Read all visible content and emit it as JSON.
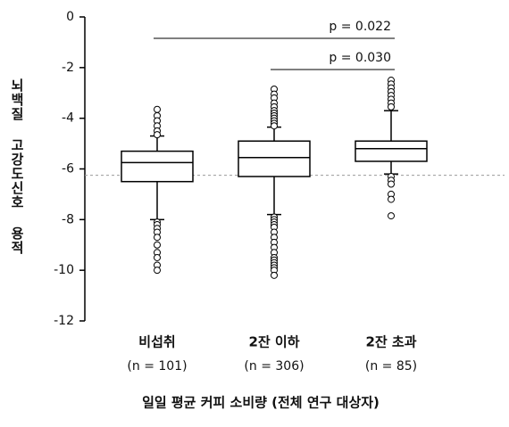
{
  "chart_data": {
    "type": "box",
    "y_label": "뇌백질 고강도신호 용적",
    "x_label": "일일 평균 커피 소비량 (전체 연구 대상자)",
    "categories": [
      "비섭취",
      "2잔 이하",
      "2잔 초과"
    ],
    "n_labels": [
      "(n = 101)",
      "(n = 306)",
      "(n = 85)"
    ],
    "ylim": [
      -12,
      0
    ],
    "yticks": [
      0,
      -2,
      -4,
      -6,
      -8,
      -10,
      -12
    ],
    "reference_line": -6.25,
    "annotations": [
      "p = 0.022",
      "p = 0.030"
    ],
    "boxes": [
      {
        "whisker_low": -8.0,
        "q1": -6.5,
        "median": -5.75,
        "q3": -5.3,
        "whisker_high": -4.7,
        "outliers": [
          -3.65,
          -3.9,
          -4.1,
          -4.3,
          -4.5,
          -4.65,
          -8.1,
          -8.2,
          -8.35,
          -8.5,
          -8.7,
          -9.0,
          -9.3,
          -9.5,
          -9.8,
          -10.0
        ]
      },
      {
        "whisker_low": -7.8,
        "q1": -6.3,
        "median": -5.55,
        "q3": -4.9,
        "whisker_high": -4.35,
        "outliers": [
          -2.85,
          -3.05,
          -3.2,
          -3.4,
          -3.55,
          -3.7,
          -3.8,
          -3.9,
          -4.0,
          -4.1,
          -4.2,
          -4.3,
          -7.9,
          -8.0,
          -8.1,
          -8.2,
          -8.3,
          -8.5,
          -8.7,
          -8.9,
          -9.1,
          -9.3,
          -9.5,
          -9.6,
          -9.7,
          -9.8,
          -9.9,
          -10.0,
          -10.2
        ]
      },
      {
        "whisker_low": -6.2,
        "q1": -5.7,
        "median": -5.2,
        "q3": -4.9,
        "whisker_high": -3.7,
        "outliers": [
          -2.5,
          -2.65,
          -2.8,
          -2.95,
          -3.1,
          -3.25,
          -3.4,
          -3.55,
          -6.3,
          -6.45,
          -6.6,
          -7.0,
          -7.2,
          -7.85
        ]
      }
    ]
  }
}
